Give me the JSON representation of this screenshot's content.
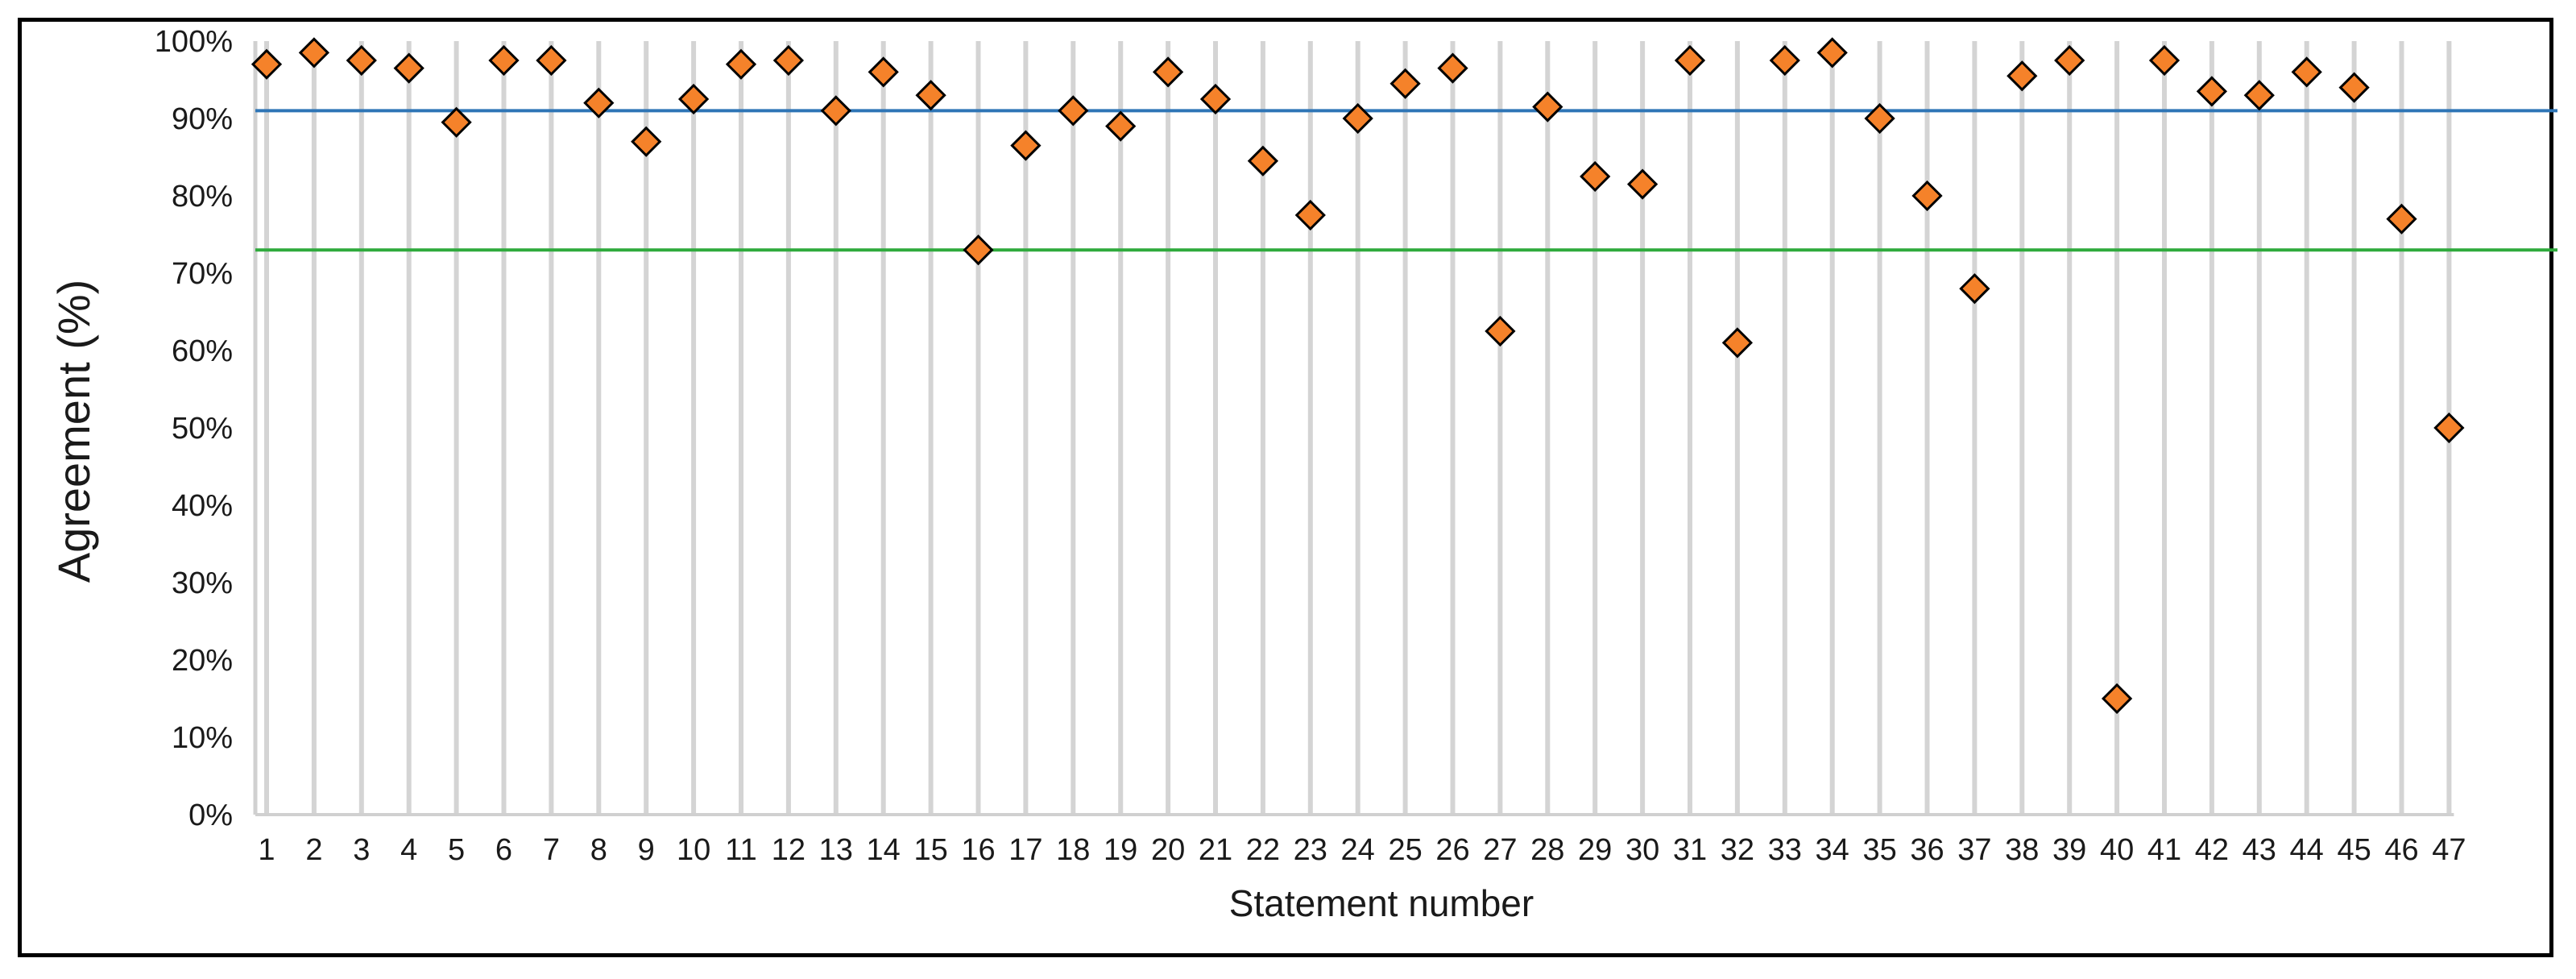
{
  "chart_data": {
    "type": "scatter",
    "xlabel": "Statement number",
    "ylabel": "Agreement (%)",
    "categories": [
      "1",
      "2",
      "3",
      "4",
      "5",
      "6",
      "7",
      "8",
      "9",
      "10",
      "11",
      "12",
      "13",
      "14",
      "15",
      "16",
      "17",
      "18",
      "19",
      "20",
      "21",
      "22",
      "23",
      "24",
      "25",
      "26",
      "27",
      "28",
      "29",
      "30",
      "31",
      "32",
      "33",
      "34",
      "35",
      "36",
      "37",
      "38",
      "39",
      "40",
      "41",
      "42",
      "43",
      "44",
      "45",
      "46",
      "47"
    ],
    "series": [
      {
        "values": [
          97,
          98.5,
          97.5,
          96.5,
          89.5,
          97.5,
          97.5,
          92,
          87,
          92.5,
          97,
          97.5,
          91,
          96,
          93,
          73,
          86.5,
          91,
          89,
          96,
          92.5,
          84.5,
          77.5,
          90,
          94.5,
          96.5,
          62.5,
          91.5,
          82.5,
          81.5,
          97.5,
          61,
          97.5,
          98.5,
          90,
          80,
          68,
          95.5,
          97.5,
          15,
          97.5,
          93.5,
          93,
          96,
          94,
          77,
          50
        ]
      }
    ],
    "reference_lines": [
      {
        "value": 91,
        "color": "#2e75b6"
      },
      {
        "value": 73,
        "color": "#2eaa3c"
      }
    ],
    "y_ticks": [
      "0%",
      "10%",
      "20%",
      "30%",
      "40%",
      "50%",
      "60%",
      "70%",
      "80%",
      "90%",
      "100%"
    ],
    "ylim": [
      0,
      100
    ],
    "grid": "vertical",
    "legend": "none",
    "marker": "diamond",
    "marker_color": "#f5822a"
  }
}
